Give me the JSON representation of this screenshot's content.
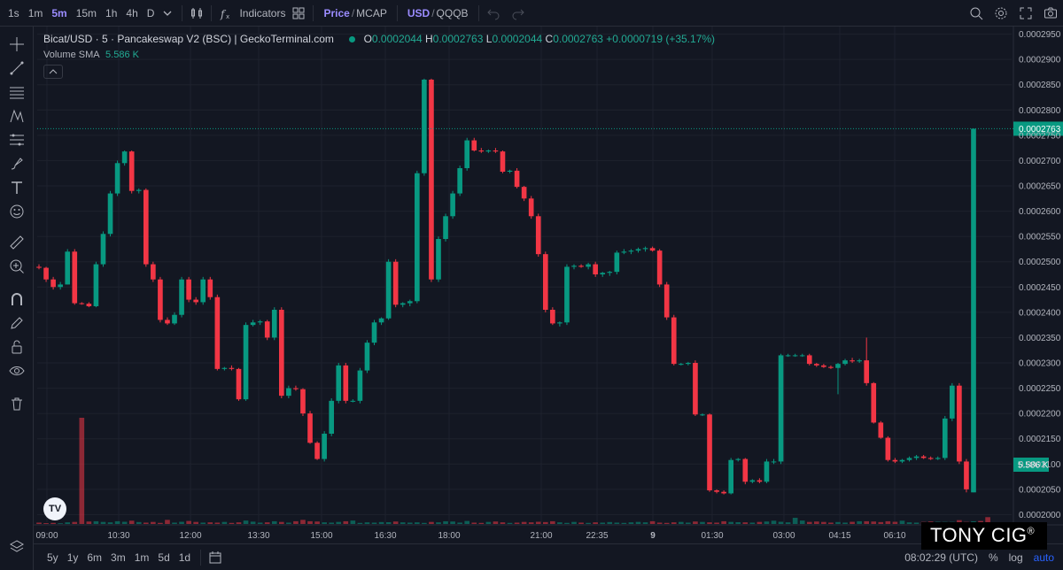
{
  "toolbar": {
    "intervals": [
      "1s",
      "1m",
      "5m",
      "15m",
      "1h",
      "4h",
      "D"
    ],
    "active_interval": "5m",
    "indicators_label": "Indicators",
    "price_label": "Price",
    "mcap_label": "MCAP",
    "usd_label": "USD",
    "quote_label": "QQQB"
  },
  "legend": {
    "title": "Bicat/USD · 5 · Pancakeswap V2 (BSC) | GeckoTerminal.com",
    "o_label": "O",
    "o_value": "0.0002044",
    "h_label": "H",
    "h_value": "0.0002763",
    "l_label": "L",
    "l_value": "0.0002044",
    "c_label": "C",
    "c_value": "0.0002763",
    "change": "+0.0000719 (+35.17%)"
  },
  "volume_legend": {
    "label": "Volume SMA",
    "value": "5.586 K"
  },
  "bottombar": {
    "ranges": [
      "5y",
      "1y",
      "6m",
      "3m",
      "1m",
      "5d",
      "1d"
    ],
    "clock": "08:02:29 (UTC)",
    "percent": "%",
    "log": "log",
    "auto": "auto"
  },
  "watermark": {
    "text": "TONY CIG",
    "mark": "®"
  },
  "tv_logo": "TV",
  "colors": {
    "up": "#089981",
    "down": "#f23645",
    "background": "#131722",
    "grid": "#1e222d"
  },
  "chart_data": {
    "type": "candlestick",
    "y_ticks": [
      "0.0002950",
      "0.0002900",
      "0.0002850",
      "0.0002800",
      "0.0002750",
      "0.0002700",
      "0.0002650",
      "0.0002600",
      "0.0002550",
      "0.0002500",
      "0.0002450",
      "0.0002400",
      "0.0002350",
      "0.0002300",
      "0.0002250",
      "0.0002200",
      "0.0002150",
      "0.0002100",
      "0.0002050",
      "0.0002000"
    ],
    "ylim": [
      0.0001985,
      0.0002965
    ],
    "x_ticks": [
      "09:00",
      "10:30",
      "12:00",
      "13:30",
      "15:00",
      "16:30",
      "18:00",
      "21:00",
      "22:35",
      "9",
      "01:30",
      "03:00",
      "04:15",
      "06:10"
    ],
    "last_price": "0.0002763",
    "volume_label": "5.586 K",
    "candles": [
      [
        0.000249,
        0.0002495,
        0.0002485,
        0.0002488
      ],
      [
        0.0002488,
        0.000249,
        0.000246,
        0.0002465
      ],
      [
        0.0002465,
        0.000247,
        0.0002445,
        0.000245
      ],
      [
        0.000245,
        0.000246,
        0.0002445,
        0.0002455
      ],
      [
        0.0002455,
        0.0002525,
        0.0002455,
        0.000252
      ],
      [
        0.000252,
        0.0002525,
        0.0002415,
        0.0002418
      ],
      [
        0.0002418,
        0.000242,
        0.0002415,
        0.0002417
      ],
      [
        0.0002417,
        0.000242,
        0.000241,
        0.0002412
      ],
      [
        0.0002412,
        0.00025,
        0.000241,
        0.0002495
      ],
      [
        0.0002495,
        0.000256,
        0.000249,
        0.0002555
      ],
      [
        0.0002555,
        0.000264,
        0.000255,
        0.0002635
      ],
      [
        0.0002635,
        0.00027,
        0.000263,
        0.0002695
      ],
      [
        0.0002695,
        0.000272,
        0.000269,
        0.0002718
      ],
      [
        0.0002718,
        0.000272,
        0.0002635,
        0.000264
      ],
      [
        0.000264,
        0.0002645,
        0.0002635,
        0.0002642
      ],
      [
        0.0002642,
        0.0002645,
        0.000249,
        0.0002495
      ],
      [
        0.0002495,
        0.00025,
        0.000246,
        0.0002465
      ],
      [
        0.0002465,
        0.000247,
        0.000238,
        0.0002385
      ],
      [
        0.0002385,
        0.000239,
        0.0002375,
        0.0002378
      ],
      [
        0.0002378,
        0.00024,
        0.0002375,
        0.0002395
      ],
      [
        0.0002395,
        0.000247,
        0.000239,
        0.0002465
      ],
      [
        0.0002465,
        0.000247,
        0.000242,
        0.0002425
      ],
      [
        0.0002425,
        0.000243,
        0.0002415,
        0.000242
      ],
      [
        0.000242,
        0.000247,
        0.0002415,
        0.0002465
      ],
      [
        0.0002465,
        0.000247,
        0.0002425,
        0.000243
      ],
      [
        0.000243,
        0.0002435,
        0.0002285,
        0.0002288
      ],
      [
        0.0002288,
        0.0002292,
        0.0002285,
        0.000229
      ],
      [
        0.000229,
        0.0002295,
        0.0002285,
        0.0002288
      ],
      [
        0.0002288,
        0.000229,
        0.0002225,
        0.0002228
      ],
      [
        0.0002228,
        0.000238,
        0.0002225,
        0.0002375
      ],
      [
        0.0002375,
        0.0002385,
        0.0002372,
        0.000238
      ],
      [
        0.000238,
        0.0002385,
        0.0002375,
        0.0002382
      ],
      [
        0.0002382,
        0.0002385,
        0.0002345,
        0.000235
      ],
      [
        0.000235,
        0.000241,
        0.0002345,
        0.0002405
      ],
      [
        0.0002405,
        0.000241,
        0.000223,
        0.0002235
      ],
      [
        0.0002235,
        0.0002255,
        0.000223,
        0.000225
      ],
      [
        0.000225,
        0.0002255,
        0.0002245,
        0.0002248
      ],
      [
        0.0002248,
        0.000225,
        0.0002195,
        0.00022
      ],
      [
        0.00022,
        0.0002205,
        0.000214,
        0.0002142
      ],
      [
        0.0002142,
        0.0002145,
        0.0002108,
        0.000211
      ],
      [
        0.000211,
        0.0002165,
        0.0002105,
        0.000216
      ],
      [
        0.000216,
        0.000223,
        0.0002155,
        0.0002225
      ],
      [
        0.0002225,
        0.00023,
        0.000222,
        0.0002295
      ],
      [
        0.0002295,
        0.00023,
        0.000222,
        0.0002225
      ],
      [
        0.0002225,
        0.0002228,
        0.0002222,
        0.0002225
      ],
      [
        0.0002225,
        0.000229,
        0.000222,
        0.0002285
      ],
      [
        0.0002285,
        0.0002345,
        0.000228,
        0.000234
      ],
      [
        0.000234,
        0.0002385,
        0.0002335,
        0.000238
      ],
      [
        0.000238,
        0.000239,
        0.0002375,
        0.0002388
      ],
      [
        0.0002388,
        0.0002505,
        0.0002385,
        0.00025
      ],
      [
        0.00025,
        0.0002505,
        0.000241,
        0.0002415
      ],
      [
        0.0002415,
        0.000242,
        0.000241,
        0.0002418
      ],
      [
        0.0002418,
        0.0002425,
        0.0002412,
        0.0002422
      ],
      [
        0.0002422,
        0.000268,
        0.0002418,
        0.0002675
      ],
      [
        0.0002675,
        0.0002862,
        0.000267,
        0.000286
      ],
      [
        0.000286,
        0.0002862,
        0.000246,
        0.0002465
      ],
      [
        0.0002465,
        0.000255,
        0.000246,
        0.0002545
      ],
      [
        0.0002545,
        0.0002595,
        0.000254,
        0.000259
      ],
      [
        0.000259,
        0.000264,
        0.0002585,
        0.0002635
      ],
      [
        0.0002635,
        0.000269,
        0.000263,
        0.0002685
      ],
      [
        0.0002685,
        0.0002745,
        0.000268,
        0.000274
      ],
      [
        0.000274,
        0.0002745,
        0.0002718,
        0.000272
      ],
      [
        0.000272,
        0.0002725,
        0.0002715,
        0.0002718
      ],
      [
        0.0002718,
        0.0002722,
        0.0002715,
        0.000272
      ],
      [
        0.000272,
        0.0002725,
        0.0002715,
        0.0002718
      ],
      [
        0.0002718,
        0.000272,
        0.0002675,
        0.0002678
      ],
      [
        0.0002678,
        0.0002682,
        0.0002675,
        0.000268
      ],
      [
        0.000268,
        0.0002685,
        0.0002645,
        0.0002648
      ],
      [
        0.0002648,
        0.000265,
        0.000262,
        0.0002625
      ],
      [
        0.0002625,
        0.000263,
        0.0002585,
        0.000259
      ],
      [
        0.000259,
        0.0002595,
        0.000251,
        0.0002515
      ],
      [
        0.0002515,
        0.000252,
        0.00024,
        0.0002405
      ],
      [
        0.0002405,
        0.000241,
        0.0002375,
        0.0002378
      ],
      [
        0.0002378,
        0.0002382,
        0.0002372,
        0.000238
      ],
      [
        0.000238,
        0.0002495,
        0.0002375,
        0.000249
      ],
      [
        0.000249,
        0.0002495,
        0.0002485,
        0.0002492
      ],
      [
        0.0002492,
        0.0002495,
        0.0002488,
        0.000249
      ],
      [
        0.000249,
        0.0002498,
        0.0002485,
        0.0002495
      ],
      [
        0.0002495,
        0.00025,
        0.000247,
        0.0002475
      ],
      [
        0.0002475,
        0.000248,
        0.000247,
        0.0002478
      ],
      [
        0.0002478,
        0.0002482,
        0.0002472,
        0.000248
      ],
      [
        0.000248,
        0.0002522,
        0.0002475,
        0.0002518
      ],
      [
        0.0002518,
        0.0002525,
        0.0002515,
        0.000252
      ],
      [
        0.000252,
        0.0002525,
        0.0002515,
        0.0002522
      ],
      [
        0.0002522,
        0.0002528,
        0.0002518,
        0.0002525
      ],
      [
        0.0002525,
        0.000253,
        0.000252,
        0.0002527
      ],
      [
        0.0002527,
        0.000253,
        0.000252,
        0.0002522
      ],
      [
        0.0002522,
        0.0002525,
        0.000245,
        0.0002455
      ],
      [
        0.0002455,
        0.000246,
        0.0002385,
        0.000239
      ],
      [
        0.000239,
        0.0002395,
        0.0002295,
        0.0002298
      ],
      [
        0.0002298,
        0.00023,
        0.0002295,
        0.0002298
      ],
      [
        0.0002298,
        0.0002302,
        0.0002295,
        0.00023
      ],
      [
        0.00023,
        0.0002305,
        0.0002195,
        0.0002198
      ],
      [
        0.0002198,
        0.00022,
        0.0002195,
        0.0002198
      ],
      [
        0.0002198,
        0.00022,
        0.0002045,
        0.0002048
      ],
      [
        0.0002048,
        0.000205,
        0.0002042,
        0.0002045
      ],
      [
        0.0002045,
        0.0002048,
        0.000204,
        0.0002042
      ],
      [
        0.0002042,
        0.0002112,
        0.000204,
        0.0002108
      ],
      [
        0.0002108,
        0.0002112,
        0.0002105,
        0.000211
      ],
      [
        0.000211,
        0.0002112,
        0.000206,
        0.0002065
      ],
      [
        0.0002065,
        0.000207,
        0.0002062,
        0.0002068
      ],
      [
        0.0002068,
        0.0002072,
        0.0002062,
        0.0002065
      ],
      [
        0.0002065,
        0.000211,
        0.0002062,
        0.0002105
      ],
      [
        0.0002105,
        0.000211,
        0.00021,
        0.0002105
      ],
      [
        0.0002105,
        0.0002318,
        0.00021,
        0.0002315
      ],
      [
        0.0002315,
        0.0002318,
        0.0002312,
        0.0002315
      ],
      [
        0.0002315,
        0.0002318,
        0.0002312,
        0.0002315
      ],
      [
        0.0002315,
        0.0002318,
        0.0002312,
        0.0002315
      ],
      [
        0.0002315,
        0.0002318,
        0.0002295,
        0.0002298
      ],
      [
        0.0002298,
        0.00023,
        0.0002292,
        0.0002295
      ],
      [
        0.0002295,
        0.0002298,
        0.000229,
        0.0002292
      ],
      [
        0.0002292,
        0.0002295,
        0.0002288,
        0.000229
      ],
      [
        0.000229,
        0.00023,
        0.0002238,
        0.0002298
      ],
      [
        0.0002298,
        0.0002308,
        0.0002295,
        0.0002305
      ],
      [
        0.0002305,
        0.000231,
        0.00023,
        0.0002303
      ],
      [
        0.0002303,
        0.0002308,
        0.00023,
        0.0002305
      ],
      [
        0.0002305,
        0.000235,
        0.0002255,
        0.000226
      ],
      [
        0.000226,
        0.0002262,
        0.000218,
        0.0002182
      ],
      [
        0.0002182,
        0.0002185,
        0.000215,
        0.0002152
      ],
      [
        0.0002152,
        0.0002155,
        0.0002105,
        0.0002108
      ],
      [
        0.0002108,
        0.0002112,
        0.0002102,
        0.0002105
      ],
      [
        0.0002105,
        0.000211,
        0.0002102,
        0.0002108
      ],
      [
        0.0002108,
        0.0002115,
        0.0002105,
        0.0002112
      ],
      [
        0.0002112,
        0.0002118,
        0.0002108,
        0.0002115
      ],
      [
        0.0002115,
        0.0002118,
        0.000211,
        0.0002112
      ],
      [
        0.0002112,
        0.0002115,
        0.0002108,
        0.000211
      ],
      [
        0.000211,
        0.0002115,
        0.0002108,
        0.0002112
      ],
      [
        0.0002112,
        0.0002195,
        0.0002108,
        0.000219
      ],
      [
        0.000219,
        0.000226,
        0.0002185,
        0.0002255
      ],
      [
        0.0002255,
        0.000226,
        0.00021,
        0.0002105
      ],
      [
        0.0002105,
        0.000211,
        0.0002044,
        0.000205
      ],
      [
        0.0002044,
        0.0002763,
        0.0002044,
        0.0002763
      ]
    ],
    "volumes": [
      1,
      0.6,
      0.8,
      0.5,
      1.2,
      1.5,
      14,
      1.8,
      2,
      1.5,
      1.2,
      2,
      1.6,
      2.4,
      1.4,
      1,
      1.5,
      0.8,
      3,
      1,
      1.6,
      2.2,
      1.5,
      1,
      1.2,
      1,
      1.5,
      0.8,
      1.2,
      2.5,
      1.7,
      1,
      1.2,
      2,
      1.5,
      1,
      2,
      3,
      2,
      1.8,
      1.2,
      1,
      1.5,
      2,
      2.5,
      0.8,
      1.2,
      1,
      1.4,
      1.3,
      1.8,
      1.2,
      1,
      1.2,
      0.8,
      1.5,
      1.2,
      2,
      1.8,
      1,
      2.2,
      1,
      0.8,
      1.5,
      1.8,
      1.2,
      0.8,
      1,
      1.5,
      1.2,
      1.6,
      1.4,
      2,
      1.2,
      0.8,
      1.5,
      1,
      0.8,
      1.2,
      1,
      1.4,
      1,
      0.8,
      1.2,
      1.5,
      1.2,
      2,
      1,
      0.8,
      1.2,
      1.5,
      1,
      1.8,
      1.5,
      1.2,
      1,
      2,
      1.5,
      1.3,
      1.2,
      1,
      1.5,
      1.8,
      2.4,
      1.6,
      1.2,
      4.5,
      2.5,
      1.5,
      1.8,
      1.5,
      1,
      1.4,
      1,
      1.6,
      2,
      2,
      1.8,
      1.4,
      2,
      1.6,
      2.4,
      1.2,
      1,
      1.5,
      1.8,
      1.6,
      1.5,
      1.5,
      2.8,
      1.5,
      2,
      2.2,
      5
    ]
  }
}
